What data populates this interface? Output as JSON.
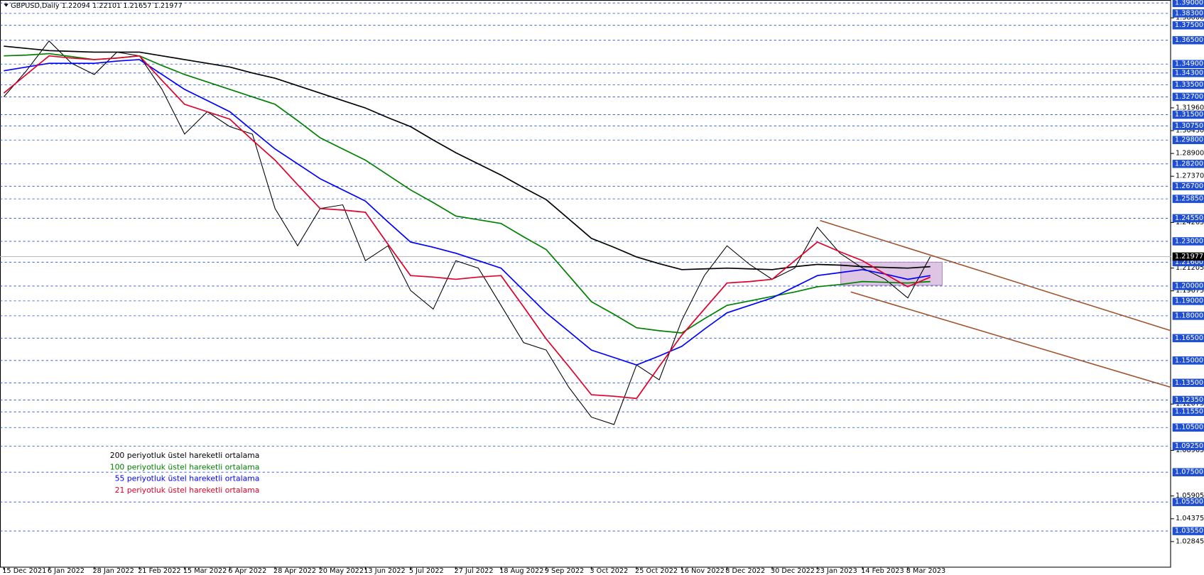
{
  "chart_data": {
    "type": "line",
    "title": "GBPUSD,Daily  1.22094 1.22101 1.21657 1.21977",
    "categories": [
      "15 Dec 2021",
      null,
      "6 Jan 2022",
      null,
      "28 Jan 2022",
      null,
      "21 Feb 2022",
      null,
      "15 Mar 2022",
      null,
      "6 Apr 2022",
      null,
      "28 Apr 2022",
      null,
      "20 May 2022",
      null,
      "13 Jun 2022",
      null,
      "5 Jul 2022",
      null,
      "27 Jul 2022",
      null,
      "18 Aug 2022",
      null,
      "9 Sep 2022",
      null,
      "3 Oct 2022",
      null,
      "25 Oct 2022",
      null,
      "16 Nov 2022",
      null,
      "8 Dec 2022",
      null,
      "30 Dec 2022",
      null,
      "23 Jan 2023",
      null,
      "14 Feb 2023",
      null,
      "8 Mar 2023",
      null
    ],
    "values": [
      1.327,
      1.3445,
      1.3645,
      1.3495,
      1.342,
      1.357,
      1.3545,
      1.332,
      1.302,
      1.317,
      1.307,
      1.302,
      1.252,
      1.227,
      1.252,
      1.2545,
      1.217,
      1.227,
      1.197,
      1.1845,
      1.217,
      1.212,
      1.187,
      1.162,
      1.157,
      1.132,
      1.112,
      1.107,
      1.147,
      1.137,
      1.177,
      1.207,
      1.227,
      1.2145,
      1.2045,
      1.212,
      1.2395,
      1.222,
      1.212,
      1.2045,
      1.192,
      1.2198
    ],
    "color": "#000000",
    "series": [
      {
        "name": "200 periyotluk üstel hareketli ortalama",
        "color": "#000000",
        "values": [
          1.361,
          1.3595,
          1.358,
          1.3575,
          1.357,
          1.357,
          1.357,
          1.3545,
          1.352,
          1.3495,
          1.347,
          1.343,
          1.3395,
          1.3345,
          1.3295,
          1.3245,
          1.3195,
          1.313,
          1.307,
          1.298,
          1.2895,
          1.282,
          1.2745,
          1.266,
          1.258,
          1.245,
          1.232,
          1.226,
          1.2195,
          1.215,
          1.211,
          1.2115,
          1.212,
          1.2115,
          1.211,
          1.213,
          1.2145,
          1.214,
          1.213,
          1.2125,
          1.212,
          1.213
        ]
      },
      {
        "name": "100 periyotluk üstel hareketli ortalama",
        "color": "#008000",
        "values": [
          1.3545,
          1.355,
          1.356,
          1.354,
          1.352,
          1.353,
          1.3545,
          1.348,
          1.342,
          1.337,
          1.332,
          1.327,
          1.322,
          1.311,
          1.2995,
          1.292,
          1.2845,
          1.2745,
          1.2645,
          1.256,
          1.247,
          1.2445,
          1.242,
          1.233,
          1.2245,
          1.207,
          1.1895,
          1.181,
          1.172,
          1.17,
          1.1685,
          1.178,
          1.187,
          1.19,
          1.193,
          1.196,
          1.1995,
          1.201,
          1.203,
          1.2025,
          1.202,
          1.203
        ]
      },
      {
        "name": "55 periyotluk üstel hareketli ortalama",
        "color": "#0000ff",
        "values": [
          1.3445,
          1.347,
          1.3495,
          1.3495,
          1.3495,
          1.351,
          1.352,
          1.342,
          1.332,
          1.3245,
          1.317,
          1.3045,
          1.292,
          1.282,
          1.272,
          1.2645,
          1.257,
          1.243,
          1.2295,
          1.226,
          1.222,
          1.217,
          1.212,
          1.197,
          1.182,
          1.1695,
          1.157,
          1.152,
          1.147,
          1.153,
          1.1595,
          1.171,
          1.182,
          1.187,
          1.192,
          1.1995,
          1.207,
          1.209,
          1.211,
          1.208,
          1.2045,
          1.207
        ]
      },
      {
        "name": "21 periyotluk üstel hareketli ortalama",
        "color": "#e0002a",
        "values": [
          1.3295,
          1.342,
          1.3545,
          1.353,
          1.352,
          1.353,
          1.3545,
          1.338,
          1.322,
          1.317,
          1.312,
          1.298,
          1.2845,
          1.268,
          1.252,
          1.251,
          1.2495,
          1.228,
          1.207,
          1.206,
          1.2045,
          1.206,
          1.207,
          1.186,
          1.1645,
          1.146,
          1.127,
          1.126,
          1.1245,
          1.146,
          1.167,
          1.1845,
          1.202,
          1.203,
          1.2045,
          1.217,
          1.2295,
          1.223,
          1.217,
          1.208,
          1.1995,
          1.206
        ]
      }
    ],
    "ylim": [
      1.014,
      1.3895
    ],
    "yticks": [
      {
        "value": 1.38,
        "label": "1.38000"
      },
      {
        "value": 1.3196,
        "label": "1.31960"
      },
      {
        "value": 1.3043,
        "label": "1.30430"
      },
      {
        "value": 1.289,
        "label": "1.28900"
      },
      {
        "value": 1.2737,
        "label": "1.27370"
      },
      {
        "value": 1.24265,
        "label": "1.24265"
      },
      {
        "value": 1.21205,
        "label": "1.21205"
      },
      {
        "value": 1.19675,
        "label": "1.19675"
      },
      {
        "value": 1.12075,
        "label": "1.12075"
      },
      {
        "value": 1.08965,
        "label": "1.08965"
      },
      {
        "value": 1.05905,
        "label": "1.05905"
      },
      {
        "value": 1.04375,
        "label": "1.04375"
      },
      {
        "value": 1.02845,
        "label": "1.02845"
      }
    ],
    "levels": [
      {
        "value": 1.39,
        "label": "1.39000"
      },
      {
        "value": 1.383,
        "label": "1.38300"
      },
      {
        "value": 1.375,
        "label": "1.37500"
      },
      {
        "value": 1.365,
        "label": "1.36500"
      },
      {
        "value": 1.349,
        "label": "1.34900"
      },
      {
        "value": 1.343,
        "label": "1.34300"
      },
      {
        "value": 1.335,
        "label": "1.33500"
      },
      {
        "value": 1.327,
        "label": "1.32700"
      },
      {
        "value": 1.315,
        "label": "1.31500"
      },
      {
        "value": 1.3075,
        "label": "1.30750"
      },
      {
        "value": 1.298,
        "label": "1.29800"
      },
      {
        "value": 1.282,
        "label": "1.28200"
      },
      {
        "value": 1.267,
        "label": "1.26700"
      },
      {
        "value": 1.2585,
        "label": "1.25850"
      },
      {
        "value": 1.2455,
        "label": "1.24550"
      },
      {
        "value": 1.23,
        "label": "1.23000"
      },
      {
        "value": 1.216,
        "label": "1.21600"
      },
      {
        "value": 1.2,
        "label": "1.20000"
      },
      {
        "value": 1.19,
        "label": "1.19000"
      },
      {
        "value": 1.18,
        "label": "1.18000"
      },
      {
        "value": 1.165,
        "label": "1.16500"
      },
      {
        "value": 1.15,
        "label": "1.15000"
      },
      {
        "value": 1.135,
        "label": "1.13500"
      },
      {
        "value": 1.1235,
        "label": "1.12350"
      },
      {
        "value": 1.1155,
        "label": "1.11550"
      },
      {
        "value": 1.105,
        "label": "1.10500"
      },
      {
        "value": 1.0925,
        "label": "1.09250"
      },
      {
        "value": 1.075,
        "label": "1.07500"
      },
      {
        "value": 1.055,
        "label": "1.05500"
      },
      {
        "value": 1.0355,
        "label": "1.03550"
      }
    ],
    "last_price": {
      "value": 1.21977,
      "label": "1.21977"
    }
  }
}
